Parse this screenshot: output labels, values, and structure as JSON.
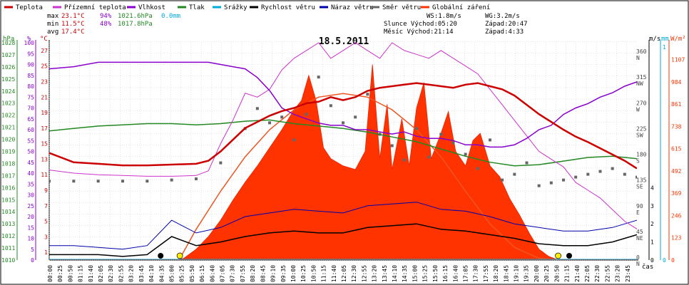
{
  "chart_data": {
    "type": "line",
    "title": "18.5.2011",
    "legend": [
      {
        "name": "Teplota",
        "color": "#cc0000"
      },
      {
        "name": "Přízemní teplota",
        "color": "#cc33cc"
      },
      {
        "name": "Vlhkost",
        "color": "#8800cc"
      },
      {
        "name": "Tlak",
        "color": "#228822"
      },
      {
        "name": "Srážky",
        "color": "#00aadd"
      },
      {
        "name": "Rychlost větru",
        "color": "#000000"
      },
      {
        "name": "Náraz větru",
        "color": "#0000aa"
      },
      {
        "name": "Směr větru",
        "color": "#666666"
      },
      {
        "name": "Globální záření",
        "color": "#ff3300"
      }
    ],
    "stats": {
      "max": {
        "label": "max",
        "temp": "23.1°C",
        "hum": "94%",
        "press": "1021.6hPa",
        "rain": "0.0mm"
      },
      "min": {
        "label": "min",
        "temp": "11.5°C",
        "hum": "48%",
        "press": "1017.8hPa"
      },
      "avg": {
        "label": "avg",
        "temp": "17.4°C"
      }
    },
    "info": {
      "ws": "WS:1.8m/s",
      "wg": "WG:3.2m/s",
      "slunce": "Slunce Východ:05:20",
      "slunce_zapad": "Západ:20:47",
      "mesic": "Měsíc Východ:21:14",
      "mesic_zapad": "Západ:4:33"
    },
    "axes": {
      "hpa_unit": "hPa",
      "pct_unit": "%",
      "c_unit": "°C",
      "ms_unit": "m/s",
      "mm_unit": "mm",
      "wm_unit": "W/m²",
      "x_label": "čas",
      "hpa_ticks": [
        "1028",
        "1027",
        "1026",
        "1025",
        "1024",
        "1023",
        "1022",
        "1021",
        "1020",
        "1019",
        "1018",
        "1017",
        "1016",
        "1015",
        "1014",
        "1013",
        "1012",
        "1011",
        "1010"
      ],
      "pct_ticks": [
        "100",
        "95",
        "90",
        "85",
        "80",
        "75",
        "70",
        "65",
        "60",
        "55",
        "50",
        "45",
        "40",
        "35",
        "30",
        "25",
        "20",
        "15",
        "10",
        "5",
        "0"
      ],
      "c_ticks": [
        "27",
        "25",
        "23",
        "21",
        "19",
        "17",
        "15",
        "13",
        "11",
        "9",
        "7",
        "5",
        "3",
        "1"
      ],
      "dir_ticks": [
        {
          "deg": "360",
          "dir": "N"
        },
        {
          "deg": "315",
          "dir": "NW"
        },
        {
          "deg": "270",
          "dir": "W"
        },
        {
          "deg": "225",
          "dir": "SW"
        },
        {
          "deg": "180",
          "dir": "S"
        },
        {
          "deg": "135",
          "dir": "SE"
        },
        {
          "deg": "90",
          "dir": "E"
        },
        {
          "deg": "45",
          "dir": "NE"
        },
        {
          "deg": "0",
          "dir": "N"
        }
      ],
      "ms_ticks": [
        "4",
        "3",
        "2",
        "1",
        "0"
      ],
      "mm_ticks": [
        "1",
        "0"
      ],
      "wm_ticks": [
        "1107",
        "984",
        "861",
        "738",
        "615",
        "492",
        "369",
        "246",
        "123",
        "0"
      ],
      "time_ticks": [
        "00:00",
        "00:25",
        "00:50",
        "01:15",
        "01:40",
        "02:05",
        "02:30",
        "02:55",
        "03:20",
        "03:45",
        "04:10",
        "04:35",
        "05:00",
        "05:25",
        "05:50",
        "06:15",
        "06:40",
        "07:05",
        "07:30",
        "07:55",
        "08:20",
        "08:45",
        "09:10",
        "09:35",
        "10:00",
        "10:25",
        "10:50",
        "11:15",
        "11:40",
        "12:05",
        "12:30",
        "12:55",
        "13:20",
        "13:45",
        "14:10",
        "14:35",
        "15:00",
        "15:25",
        "15:50",
        "16:15",
        "16:40",
        "17:05",
        "17:30",
        "17:55",
        "18:20",
        "18:45",
        "19:10",
        "19:35",
        "20:00",
        "20:25",
        "20:50",
        "21:15",
        "21:40",
        "22:05",
        "22:30",
        "22:55",
        "23:20",
        "23:45"
      ]
    },
    "x_range_hours": [
      0,
      24
    ],
    "temperature_c": {
      "x": [
        0,
        0.5,
        1,
        2,
        3,
        4,
        5,
        6,
        6.5,
        7,
        7.5,
        8,
        8.5,
        9,
        9.5,
        10,
        10.5,
        11,
        11.5,
        12,
        12.5,
        13,
        13.5,
        14,
        14.5,
        15,
        15.5,
        16,
        16.5,
        17,
        17.5,
        18,
        18.5,
        19,
        19.5,
        20,
        20.5,
        21,
        21.5,
        22,
        22.5,
        23,
        23.5,
        24
      ],
      "y": [
        13.8,
        13.2,
        12.6,
        12.4,
        12.2,
        12.2,
        12.3,
        12.4,
        12.8,
        14,
        15.5,
        17,
        17.8,
        18.6,
        19.2,
        19.6,
        20.2,
        20.4,
        21,
        20.6,
        21,
        21.8,
        22.2,
        22.4,
        22.6,
        22.8,
        22.6,
        22.4,
        22.2,
        22.6,
        22.8,
        22.4,
        22,
        21.2,
        20,
        18.8,
        17.8,
        16.8,
        15.9,
        15.2,
        14.4,
        13.6,
        12.8,
        11.8
      ]
    },
    "ground_temp_c": {
      "x": [
        0,
        1,
        2,
        3,
        4,
        5,
        6,
        6.5,
        7,
        7.5,
        8,
        8.5,
        9,
        9.5,
        10,
        10.5,
        11,
        11.5,
        12,
        12.5,
        13,
        13.5,
        14,
        14.5,
        15,
        15.5,
        16,
        16.5,
        17,
        17.5,
        18,
        18.5,
        19,
        19.5,
        20,
        20.5,
        21,
        21.5,
        22,
        22.5,
        23,
        23.5,
        24
      ],
      "y": [
        11.6,
        11.2,
        11,
        10.9,
        10.8,
        10.8,
        10.9,
        11.5,
        15,
        18,
        21.5,
        21,
        22,
        24.5,
        26,
        27,
        28,
        26,
        27,
        28,
        27,
        26,
        28,
        27,
        26.5,
        26,
        27,
        26,
        25,
        24,
        22,
        20,
        18,
        16,
        14,
        13,
        12,
        10,
        9,
        8,
        6.5,
        5,
        4
      ]
    },
    "humidity_pct": {
      "x": [
        0,
        1,
        2,
        3,
        4,
        5,
        6,
        6.5,
        7,
        7.5,
        8,
        8.5,
        9,
        9.5,
        10,
        10.5,
        11,
        11.5,
        12,
        12.5,
        13,
        13.5,
        14,
        14.5,
        15,
        15.5,
        16,
        16.5,
        17,
        17.5,
        18,
        18.5,
        19,
        19.5,
        20,
        20.5,
        21,
        21.5,
        22,
        22.5,
        23,
        23.5,
        24
      ],
      "y": [
        88,
        89,
        91,
        91,
        91,
        91,
        91,
        91,
        90,
        89,
        88,
        84,
        78,
        70,
        67,
        65,
        63,
        62,
        62,
        60,
        60,
        59,
        58,
        59,
        57,
        56,
        56,
        55,
        53,
        53,
        52,
        52,
        53,
        56,
        60,
        62,
        67,
        70,
        72,
        75,
        77,
        80,
        82
      ]
    },
    "pressure_hpa": {
      "x": [
        0,
        1,
        2,
        3,
        4,
        5,
        6,
        7,
        8,
        9,
        10,
        11,
        12,
        13,
        14,
        15,
        16,
        17,
        18,
        19,
        20,
        21,
        22,
        23,
        24
      ],
      "y": [
        1020.7,
        1020.9,
        1021.1,
        1021.2,
        1021.3,
        1021.3,
        1021.2,
        1021.3,
        1021.5,
        1021.6,
        1021.3,
        1021.1,
        1020.9,
        1020.6,
        1020.2,
        1019.8,
        1019.2,
        1018.6,
        1018.1,
        1017.8,
        1017.9,
        1018.2,
        1018.5,
        1018.6,
        1018.4
      ]
    },
    "rain_mm": 0.0,
    "wind_speed_ms": {
      "x": [
        0,
        1,
        2,
        3,
        4,
        5,
        6,
        7,
        8,
        9,
        10,
        11,
        12,
        13,
        14,
        15,
        16,
        17,
        18,
        19,
        20,
        21,
        22,
        23,
        24
      ],
      "y": [
        0.3,
        0.3,
        0.3,
        0.2,
        0.3,
        1.3,
        0.8,
        1.0,
        1.3,
        1.5,
        1.6,
        1.5,
        1.5,
        1.8,
        1.9,
        2.0,
        1.7,
        1.6,
        1.4,
        1.2,
        0.9,
        0.8,
        0.8,
        1.0,
        1.4
      ]
    },
    "wind_gust_ms": {
      "x": [
        0,
        1,
        2,
        3,
        4,
        5,
        6,
        7,
        8,
        9,
        10,
        11,
        12,
        13,
        14,
        15,
        16,
        17,
        18,
        19,
        20,
        21,
        22,
        23,
        24
      ],
      "y": [
        0.8,
        0.8,
        0.7,
        0.6,
        0.8,
        2.2,
        1.5,
        1.8,
        2.4,
        2.6,
        2.8,
        2.7,
        2.6,
        3.0,
        3.1,
        3.2,
        2.8,
        2.7,
        2.4,
        2.0,
        1.8,
        1.6,
        1.6,
        1.8,
        2.2
      ]
    },
    "wind_direction_deg": {
      "x": [
        0,
        1,
        2,
        3,
        4,
        5,
        6,
        7,
        8,
        8.5,
        9,
        9.5,
        10,
        10.5,
        11,
        11.5,
        12,
        12.5,
        13,
        13.5,
        14,
        14.5,
        15,
        15.5,
        16,
        16.5,
        17,
        17.5,
        18,
        18.5,
        19,
        19.5,
        20,
        20.5,
        21,
        21.5,
        22,
        22.5,
        23,
        23.5,
        24
      ],
      "y": [
        138,
        138,
        138,
        138,
        138,
        140,
        142,
        170,
        230,
        265,
        240,
        250,
        210,
        255,
        320,
        270,
        240,
        250,
        290,
        220,
        200,
        175,
        230,
        180,
        220,
        205,
        185,
        160,
        210,
        140,
        150,
        170,
        130,
        135,
        140,
        145,
        150,
        155,
        160,
        150,
        145
      ]
    },
    "radiation_wm2": {
      "x": [
        0,
        5.2,
        5.5,
        6,
        6.5,
        7,
        7.5,
        8,
        8.5,
        9,
        9.5,
        10,
        10.3,
        10.6,
        10.9,
        11.2,
        11.5,
        12,
        12.5,
        12.9,
        13.2,
        13.5,
        13.8,
        14,
        14.4,
        14.7,
        15,
        15.3,
        15.6,
        16,
        16.3,
        16.6,
        17,
        17.3,
        17.6,
        18,
        18.4,
        18.8,
        19.2,
        19.6,
        20,
        20.4,
        20.8,
        24
      ],
      "y": [
        0,
        0,
        10,
        60,
        130,
        220,
        330,
        430,
        520,
        620,
        720,
        830,
        880,
        1020,
        880,
        620,
        560,
        520,
        500,
        600,
        1080,
        560,
        860,
        500,
        780,
        520,
        840,
        980,
        560,
        700,
        820,
        600,
        520,
        660,
        700,
        520,
        460,
        340,
        250,
        150,
        60,
        20,
        0,
        0
      ]
    },
    "clear_sky_radiation_wm2": {
      "x": [
        5.3,
        6,
        7,
        8,
        9,
        10,
        11,
        12,
        13,
        14,
        15,
        16,
        17,
        18,
        19,
        20,
        20.8
      ],
      "y": [
        0,
        170,
        380,
        570,
        720,
        830,
        900,
        920,
        900,
        830,
        720,
        570,
        380,
        200,
        70,
        10,
        0
      ]
    },
    "sun_markers": [
      {
        "label": "sunrise",
        "time": "05:20"
      },
      {
        "label": "sunset",
        "time": "20:47"
      }
    ],
    "moon_markers": [
      {
        "label": "moonset",
        "time": "4:33"
      },
      {
        "label": "moonrise",
        "time": "21:14"
      }
    ]
  }
}
